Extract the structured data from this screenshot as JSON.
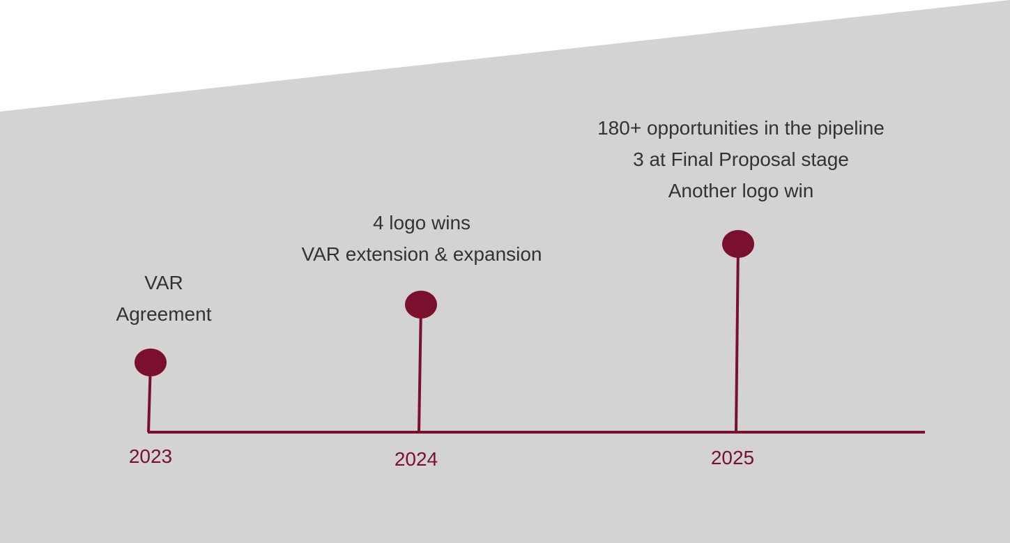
{
  "milestones": [
    {
      "year": "2023",
      "lines": [
        "VAR",
        "Agreement"
      ]
    },
    {
      "year": "2024",
      "lines": [
        "4 logo wins",
        "VAR extension & expansion"
      ]
    },
    {
      "year": "2025",
      "lines": [
        "180+ opportunities in the pipeline",
        "3 at Final Proposal stage",
        "Another logo win"
      ]
    }
  ]
}
